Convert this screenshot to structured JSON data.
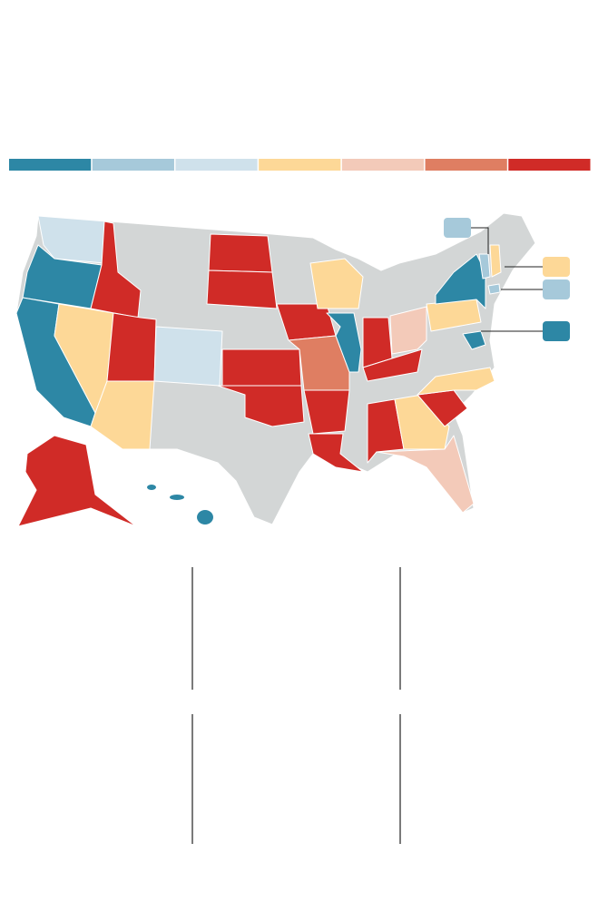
{
  "legend": {
    "colors": [
      "#2d87a5",
      "#a6c9da",
      "#cfe1eb",
      "#fdd897",
      "#f3cab9",
      "#df7e62",
      "#d02b27"
    ]
  },
  "callouts": {
    "colors": [
      "#a6c9da",
      "#fdd897",
      "#a6c9da",
      "#2d87a5"
    ]
  }
}
